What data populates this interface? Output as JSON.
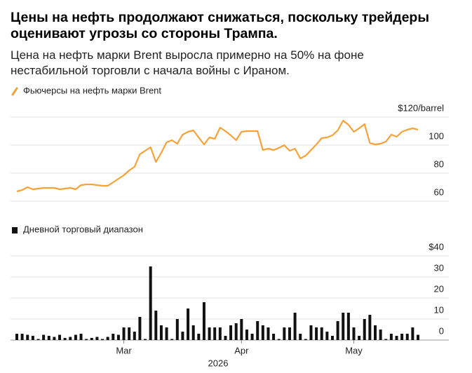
{
  "title": "Цены на нефть продолжают снижаться, поскольку трейдеры оценивают угрозы со стороны Трампа.",
  "subtitle": "Цена на нефть марки Brent выросла примерно на 50% на фоне нестабильной торговли с начала войны с Ираном.",
  "chart_data": [
    {
      "type": "line",
      "series": [
        {
          "name": "Фьючерсы на нефть марки Brent",
          "color": "#f5a23a",
          "values": [
            67,
            68,
            70,
            68.5,
            69,
            69.5,
            69.5,
            69.5,
            68.5,
            69,
            69.5,
            68.5,
            71.5,
            72,
            72,
            71.5,
            71,
            71,
            73.5,
            76,
            78.5,
            82,
            84.5,
            93.5,
            96,
            98.5,
            88,
            94.5,
            102,
            103.5,
            101,
            107.5,
            109.5,
            110.5,
            105.5,
            100.5,
            105.5,
            104.5,
            112.5,
            110,
            107,
            103.5,
            109.5,
            110,
            110,
            110,
            96.5,
            97.5,
            96.5,
            98,
            100,
            96,
            97.5,
            90.5,
            92.5,
            96.5,
            100.5,
            105,
            105.5,
            107,
            110.5,
            117.5,
            114.5,
            109.5,
            112,
            115,
            101.5,
            100.5,
            101,
            102.5,
            107.5,
            106,
            109.5,
            111,
            112,
            111
          ]
        }
      ],
      "ylim": [
        60,
        120
      ],
      "yticks": [
        {
          "value": 120,
          "label": "$120/barrel"
        },
        100,
        80,
        60
      ],
      "grid": true
    },
    {
      "type": "bar",
      "series": [
        {
          "name": "Дневной торговый диапазон",
          "color": "#111111",
          "values": [
            3,
            3,
            2.5,
            2,
            0.5,
            2.5,
            2,
            1.5,
            2.5,
            1,
            1.5,
            2.5,
            3,
            0.5,
            1,
            1.5,
            0.5,
            1.5,
            3,
            2.5,
            6,
            6,
            4,
            11,
            0.5,
            35,
            14,
            7,
            6,
            0.5,
            10,
            4,
            15,
            7,
            3,
            18,
            6,
            6,
            6,
            2,
            7,
            8,
            10,
            5,
            3,
            9,
            7,
            6,
            3,
            0.5,
            6,
            6,
            13,
            3,
            0.5,
            7,
            6,
            6,
            4,
            2,
            9,
            13,
            13,
            6,
            2,
            10,
            12,
            7,
            5,
            0.5,
            3,
            2,
            3,
            3,
            6,
            2.5
          ]
        }
      ],
      "categories": [
        null,
        null,
        null,
        null,
        null,
        null,
        null,
        null,
        null,
        null,
        null,
        null,
        null,
        null,
        null,
        null,
        null,
        null,
        null,
        null,
        "Mar",
        null,
        null,
        null,
        null,
        null,
        null,
        null,
        null,
        null,
        null,
        null,
        null,
        null,
        null,
        null,
        null,
        null,
        null,
        null,
        null,
        null,
        "Apr",
        null,
        null,
        null,
        null,
        null,
        null,
        null,
        null,
        null,
        null,
        null,
        null,
        null,
        null,
        null,
        null,
        null,
        null,
        null,
        null,
        "May",
        null,
        null,
        null,
        null,
        null,
        null,
        null,
        null,
        null,
        null,
        null,
        null
      ],
      "xlabel": "2026",
      "ylim": [
        0,
        40
      ],
      "yticks": [
        {
          "value": 40,
          "label": "$40"
        },
        30,
        20,
        10,
        0
      ],
      "grid": true
    }
  ]
}
